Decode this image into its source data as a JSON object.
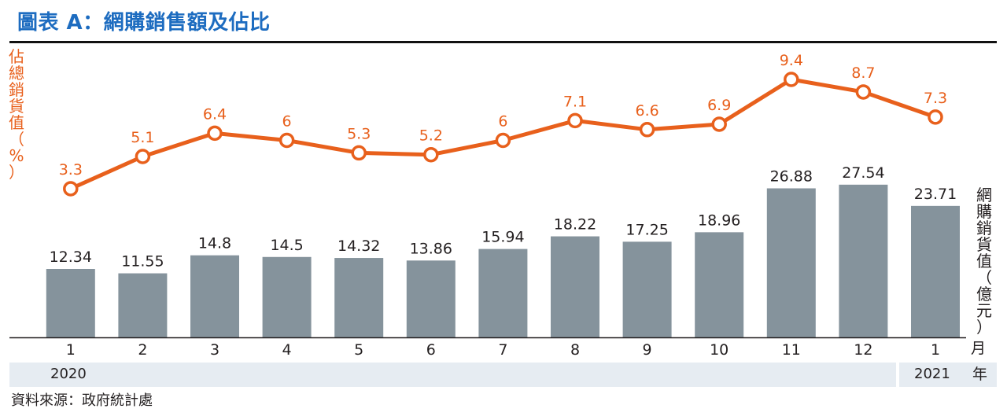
{
  "title": "圖表 A：網購銷售額及佔比",
  "source": "資料來源：政府統計處",
  "month_unit": "月",
  "year_unit": "年",
  "years": [
    "2020",
    "2021"
  ],
  "chart_data": {
    "type": "bar+line",
    "categories": [
      "1",
      "2",
      "3",
      "4",
      "5",
      "6",
      "7",
      "8",
      "9",
      "10",
      "11",
      "12",
      "1"
    ],
    "series": [
      {
        "type": "bar",
        "axis": "right",
        "ylabel": "網購銷貨值（億元）",
        "values": [
          12.34,
          11.55,
          14.8,
          14.5,
          14.32,
          13.86,
          15.94,
          18.22,
          17.25,
          18.96,
          26.88,
          27.54,
          23.71
        ],
        "labels": [
          "12.34",
          "11.55",
          "14.8",
          "14.5",
          "14.32",
          "13.86",
          "15.94",
          "18.22",
          "17.25",
          "18.96",
          "26.88",
          "27.54",
          "23.71"
        ],
        "color": "#85939c"
      },
      {
        "type": "line",
        "axis": "left",
        "ylabel": "佔總銷貨值（%）",
        "values": [
          3.3,
          5.1,
          6.4,
          6,
          5.3,
          5.2,
          6,
          7.1,
          6.6,
          6.9,
          9.4,
          8.7,
          7.3
        ],
        "labels": [
          "3.3",
          "5.1",
          "6.4",
          "6",
          "5.3",
          "5.2",
          "6",
          "7.1",
          "6.6",
          "6.9",
          "9.4",
          "8.7",
          "7.3"
        ],
        "color": "#e8601c"
      }
    ],
    "bar_ylim": [
      0,
      40.5
    ],
    "line_ylim": [
      -4,
      10.3
    ],
    "grid": false,
    "legend": "none"
  }
}
